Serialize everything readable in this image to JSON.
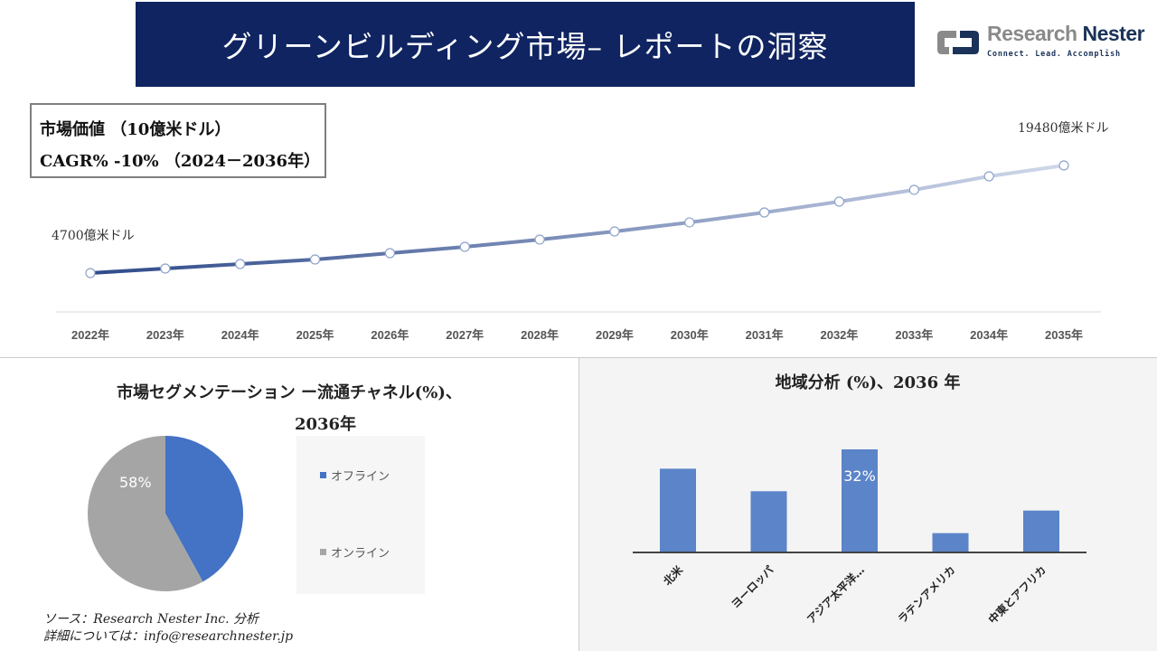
{
  "header": {
    "title": "グリーンビルディング市場– レポートの洞察"
  },
  "logo": {
    "name_part1": "Research",
    "name_part2": "Nester",
    "tagline": "Connect. Lead. Accomplish"
  },
  "infobox": {
    "line1": "市場価値 （10億米ドル）",
    "line2": "CAGR% -10% （2024－2036年）"
  },
  "colors": {
    "banner": "#0f2461",
    "line_start": "#2e4a8a",
    "line_end": "#d0d8ea",
    "offline": "#4472c4",
    "online": "#a5a5a5",
    "bar": "#5b84c9"
  },
  "chart_data": [
    {
      "type": "line",
      "categories": [
        "2022年",
        "2023年",
        "2024年",
        "2025年",
        "2026年",
        "2027年",
        "2028年",
        "2029年",
        "2030年",
        "2031年",
        "2032年",
        "2033年",
        "2034年",
        "2035年"
      ],
      "values": [
        4700,
        5320,
        5940,
        6560,
        7430,
        8300,
        9300,
        10410,
        11660,
        13020,
        14510,
        16130,
        17990,
        19480
      ],
      "start_label": "4700億米ドル",
      "end_label": "19480億米ドル",
      "unit": "億米ドル"
    },
    {
      "type": "pie",
      "title": "市場セグメンテーション ー流通チャネル(%)、",
      "title_line2": "2036年",
      "slices": [
        {
          "name": "オフライン",
          "value": 42
        },
        {
          "name": "オンライン",
          "value": 58,
          "label": "58%"
        }
      ]
    },
    {
      "type": "bar",
      "title": "地域分析 (%)、2036 年",
      "categories": [
        "北米",
        "ヨーロッパ",
        "アジア太平洋…",
        "ラテンアメリカ",
        "中東とアフリカ"
      ],
      "values": [
        26,
        19,
        32,
        6,
        13
      ],
      "data_labels": [
        "",
        "",
        "32%",
        "",
        ""
      ]
    }
  ],
  "footer": {
    "source": "ソース：Research Nester Inc. 分析",
    "contact": "詳細については：info@researchnester.jp"
  }
}
